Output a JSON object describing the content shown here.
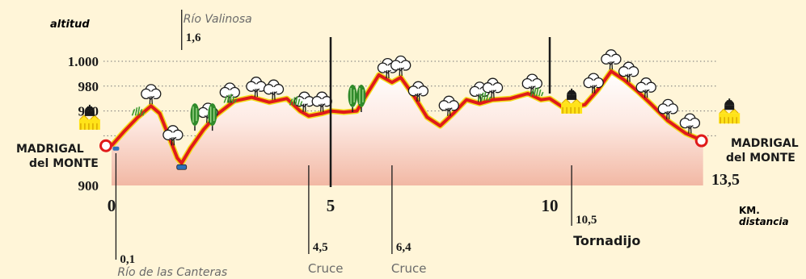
{
  "chart_data": {
    "type": "area",
    "ylabel": "altitud",
    "xlabel": "distancia",
    "x_unit": "KM.",
    "y_ticks": [
      "900",
      "960",
      "980",
      "1.000"
    ],
    "x_ticks": [
      "0",
      "5",
      "10"
    ],
    "x_end_label": "13,5",
    "xlim": [
      0,
      13.5
    ],
    "ylim": [
      900,
      1010
    ],
    "grid": "dotted horizontal at 940, 960, 980, 1000",
    "profile": {
      "x": [
        0,
        0.1,
        0.3,
        0.6,
        0.9,
        1.1,
        1.3,
        1.5,
        1.6,
        1.8,
        2.1,
        2.4,
        2.8,
        3.2,
        3.6,
        4.0,
        4.3,
        4.5,
        4.8,
        5.0,
        5.3,
        5.6,
        5.8,
        6.1,
        6.4,
        6.6,
        6.9,
        7.2,
        7.5,
        7.8,
        8.1,
        8.4,
        8.7,
        9.1,
        9.5,
        9.8,
        10.0,
        10.3,
        10.5,
        10.8,
        11.1,
        11.4,
        11.7,
        12.0,
        12.3,
        12.7,
        13.1,
        13.5
      ],
      "y": [
        932,
        936,
        944,
        955,
        964,
        958,
        940,
        922,
        918,
        930,
        945,
        957,
        968,
        971,
        967,
        970,
        960,
        956,
        958,
        960,
        959,
        960,
        972,
        989,
        983,
        987,
        972,
        955,
        948,
        958,
        969,
        966,
        969,
        970,
        974,
        969,
        970,
        963,
        963,
        965,
        977,
        992,
        985,
        976,
        966,
        952,
        942,
        936
      ]
    },
    "points": [
      {
        "km": "0,1",
        "name": "Río de las Canteras"
      },
      {
        "km": "1,6",
        "name": "Río Valinosa"
      },
      {
        "km": "4,5",
        "name": "Cruce"
      },
      {
        "km": "6,4",
        "name": "Cruce"
      },
      {
        "km": "10,5",
        "name": "Tornadijo"
      }
    ],
    "start_label": [
      "MADRIGAL",
      "del MONTE"
    ],
    "end_label": [
      "MADRIGAL",
      "del MONTE"
    ]
  },
  "colors": {
    "background": "#fff5d8",
    "route": "#e01a1a",
    "edge": "#f2dd1c",
    "fill_top": "#ffffff",
    "fill_bottom": "#f2b8a4",
    "ink": "#1a1a1a",
    "grey_text": "#6a6a6a"
  },
  "icons": [
    "tree-icon",
    "village-icon",
    "fountain-icon",
    "bush-icon",
    "poplar-icon"
  ]
}
